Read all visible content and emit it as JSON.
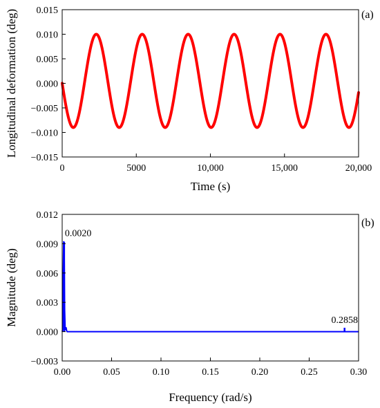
{
  "chart_data": [
    {
      "type": "line",
      "panel_label": "(a)",
      "xlabel": "Time (s)",
      "ylabel": "Longitudinal deformation (deg)",
      "xlim": [
        0,
        20000
      ],
      "ylim": [
        -0.015,
        0.015
      ],
      "xticks": [
        0,
        5000,
        10000,
        15000,
        20000
      ],
      "xtick_labels": [
        "0",
        "5000",
        "10,000",
        "15,000",
        "20,000"
      ],
      "yticks": [
        -0.015,
        -0.01,
        -0.005,
        0.0,
        0.005,
        0.01,
        0.015
      ],
      "ytick_labels": [
        "−0.015",
        "−0.010",
        "−0.005",
        "0.000",
        "0.005",
        "0.010",
        "0.015"
      ],
      "grid": false,
      "series": [
        {
          "color": "#ff0000",
          "form": "sinusoid",
          "amplitude": 0.0095,
          "offset": 0.0005,
          "period_s": 3100,
          "first_peak_s": 2300,
          "x_start": 0,
          "y_start": -0.0005
        }
      ]
    },
    {
      "type": "line",
      "panel_label": "(b)",
      "xlabel": "Frequency (rad/s)",
      "ylabel": "Magnitude (deg)",
      "xlim": [
        0,
        0.3
      ],
      "ylim": [
        -0.003,
        0.012
      ],
      "xticks": [
        0,
        0.05,
        0.1,
        0.15,
        0.2,
        0.25,
        0.3
      ],
      "xtick_labels": [
        "0.00",
        "0.05",
        "0.10",
        "0.15",
        "0.20",
        "0.25",
        "0.30"
      ],
      "yticks": [
        -0.003,
        0.0,
        0.003,
        0.006,
        0.009,
        0.012
      ],
      "ytick_labels": [
        "−0.003",
        "0.000",
        "0.003",
        "0.006",
        "0.009",
        "0.012"
      ],
      "grid": false,
      "series": [
        {
          "color": "#0000ff",
          "x": [
            0,
            0.0005,
            0.001,
            0.0015,
            0.002,
            0.0025,
            0.003,
            0.0035,
            0.004,
            0.0045,
            0.005,
            0.3
          ],
          "y": [
            0.0,
            0.0002,
            0.0058,
            0.0092,
            0.0088,
            0.0022,
            0.0004,
            0.0002,
            0.0004,
            0.0001,
            0.0,
            0.0
          ]
        }
      ],
      "peaks": [
        {
          "x": 0.002,
          "y": 0.0092
        },
        {
          "x": 0.2858,
          "y": 0.0004
        }
      ],
      "annotations": [
        {
          "text": "0.0020",
          "x": 0.002,
          "y": 0.0092,
          "color": "#e00000"
        },
        {
          "text": "0.2858",
          "x": 0.2858,
          "y": 0.0004,
          "color": "#e00000"
        }
      ]
    }
  ]
}
